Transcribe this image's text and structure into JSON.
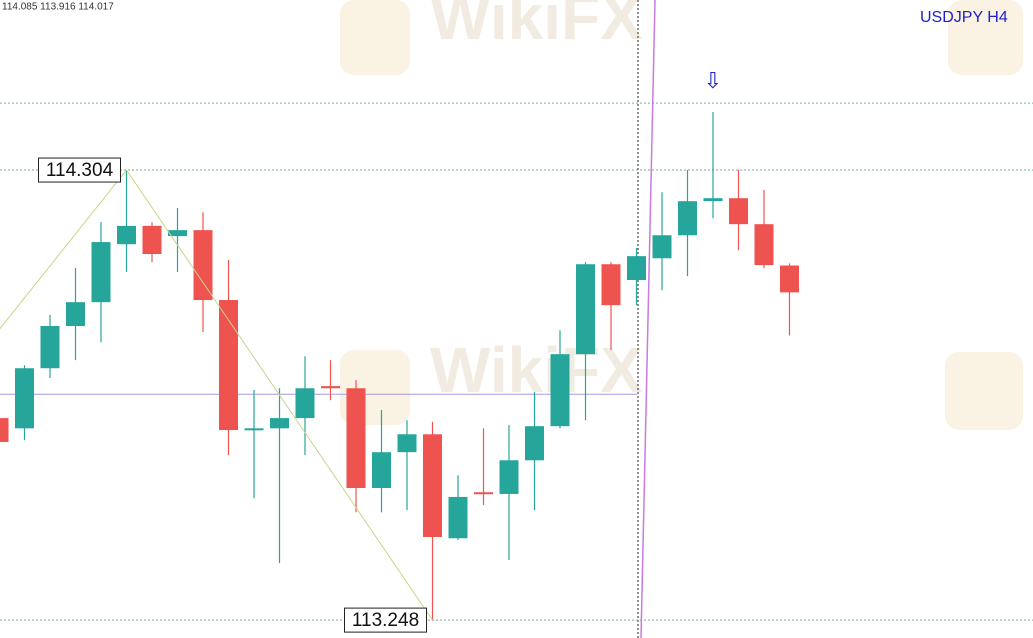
{
  "chart_data": {
    "type": "candlestick",
    "title": "USDJPY H4",
    "info": "114.085 113.916 114.017",
    "annotation": "⇩",
    "watermark": "WikiFX",
    "ylim": [
      113.206,
      114.703
    ],
    "up_color": "#26a69a",
    "down_color": "#ef5350",
    "open": [
      113.722,
      113.698,
      113.839,
      113.938,
      113.994,
      114.13,
      114.173,
      114.149,
      114.163,
      113.999,
      113.694,
      113.698,
      113.722,
      113.797,
      113.792,
      113.558,
      113.642,
      113.684,
      113.44,
      113.548,
      113.544,
      113.623,
      113.703,
      113.872,
      114.083,
      114.046,
      114.097,
      114.151,
      114.231,
      114.238,
      114.177,
      114.08
    ],
    "high": [
      113.741,
      113.846,
      113.964,
      114.074,
      114.182,
      114.304,
      114.182,
      114.215,
      114.205,
      114.093,
      113.788,
      113.792,
      113.867,
      113.858,
      113.811,
      113.741,
      113.717,
      113.713,
      113.588,
      113.698,
      113.706,
      113.783,
      113.928,
      114.088,
      114.088,
      114.121,
      114.252,
      114.304,
      114.44,
      114.304,
      114.257,
      114.085
    ],
    "low": [
      113.659,
      113.67,
      113.816,
      113.858,
      113.9,
      114.065,
      114.088,
      114.065,
      113.924,
      113.635,
      113.534,
      113.382,
      113.635,
      113.764,
      113.501,
      113.501,
      113.506,
      113.248,
      113.436,
      113.518,
      113.389,
      113.506,
      113.698,
      113.717,
      113.882,
      113.987,
      114.022,
      114.055,
      114.191,
      114.116,
      114.074,
      113.916
    ],
    "close": [
      113.666,
      113.839,
      113.938,
      113.994,
      114.135,
      114.173,
      114.107,
      114.163,
      113.999,
      113.694,
      113.698,
      113.722,
      113.792,
      113.792,
      113.558,
      113.642,
      113.684,
      113.443,
      113.537,
      113.544,
      113.623,
      113.703,
      113.872,
      114.083,
      113.987,
      114.102,
      114.151,
      114.231,
      114.238,
      114.177,
      114.081,
      114.017
    ],
    "levels": [
      114.461,
      114.304,
      113.248
    ],
    "crosshair": 113.778,
    "zigzag": [
      113.929,
      114.304,
      113.248
    ]
  }
}
